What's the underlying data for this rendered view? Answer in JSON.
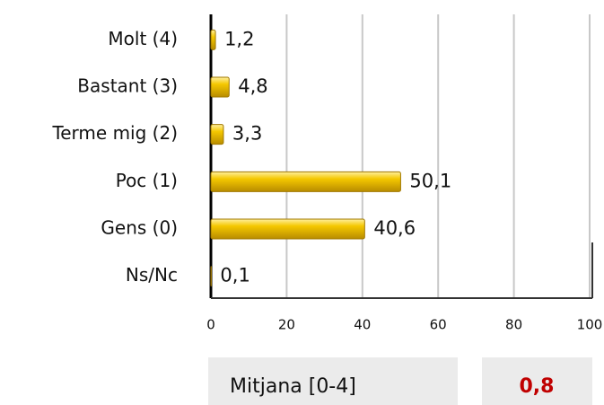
{
  "chart_data": {
    "type": "bar",
    "orientation": "horizontal",
    "categories": [
      "Molt (4)",
      "Bastant (3)",
      "Terme mig (2)",
      "Poc (1)",
      "Gens (0)",
      "Ns/Nc"
    ],
    "values": [
      1.2,
      4.8,
      3.3,
      50.1,
      40.6,
      0.1
    ],
    "value_labels": [
      "1,2",
      "4,8",
      "3,3",
      "50,1",
      "40,6",
      "0,1"
    ],
    "color": "#f2c200",
    "xlim": [
      0,
      100
    ],
    "xticks": [
      0,
      20,
      40,
      60,
      80,
      100
    ],
    "grid": true
  },
  "summary": {
    "label": "Mitjana [0-4]",
    "value": "0,8"
  }
}
